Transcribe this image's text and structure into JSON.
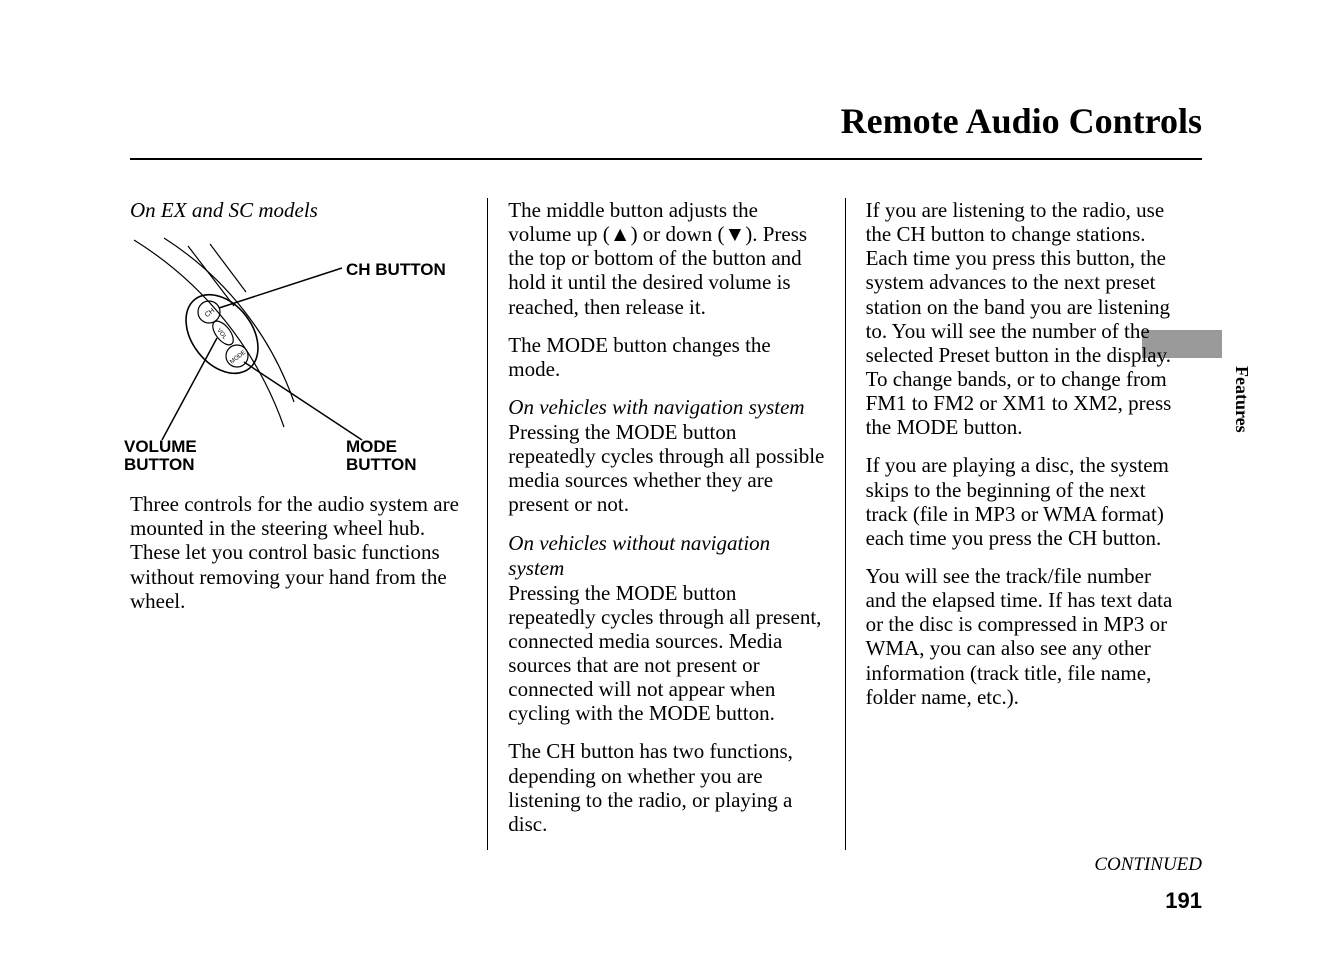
{
  "title": "Remote Audio Controls",
  "sidetab": "Features",
  "pagenum": "191",
  "continued": "CONTINUED",
  "col1": {
    "model_note": "On EX and SC models",
    "labels": {
      "ch": "CH BUTTON",
      "volume": "VOLUME BUTTON",
      "mode": "MODE BUTTON"
    },
    "p1": "Three controls for the audio system are mounted in the steering wheel hub. These let you control basic functions without removing your hand from the wheel."
  },
  "col2": {
    "p1": "The middle button adjusts the volume up (▲) or down (▼). Press the top or bottom of the button and hold it until the desired volume is reached, then release it.",
    "p2": "The MODE button changes the mode.",
    "sub1": "On vehicles with navigation system",
    "p3": "Pressing the MODE button repeatedly cycles through all possible media sources whether they are present or not.",
    "sub2": "On vehicles without navigation system",
    "p4": "Pressing the MODE button repeatedly cycles through all present, connected media sources. Media sources that are not present or connected will not appear when cycling with the MODE button.",
    "p5": "The CH button has two functions, depending on whether you are listening to the radio, or playing a disc."
  },
  "col3": {
    "p1": "If you are listening to the radio, use the CH button to change stations. Each time you press this button, the system advances to the next preset station on the band you are listening to. You will see the number of the selected Preset button in the display. To change bands, or to change from FM1 to FM2 or XM1 to XM2, press the MODE button.",
    "p2": "If you are playing a disc, the system skips to the beginning of the next track (file in MP3 or WMA format) each time you press the CH button.",
    "p3": "You will see the track/file number and the elapsed time. If has text data or the disc is compressed in MP3 or WMA, you can also see any other information (track title, file name, folder name, etc.)."
  },
  "style": {
    "body_font_size_pt": 16,
    "title_font_size_pt": 27,
    "label_font_size_pt": 13,
    "text_color": "#000000",
    "bg_color": "#ffffff",
    "sidebar_gray": "#9a9a9a"
  }
}
